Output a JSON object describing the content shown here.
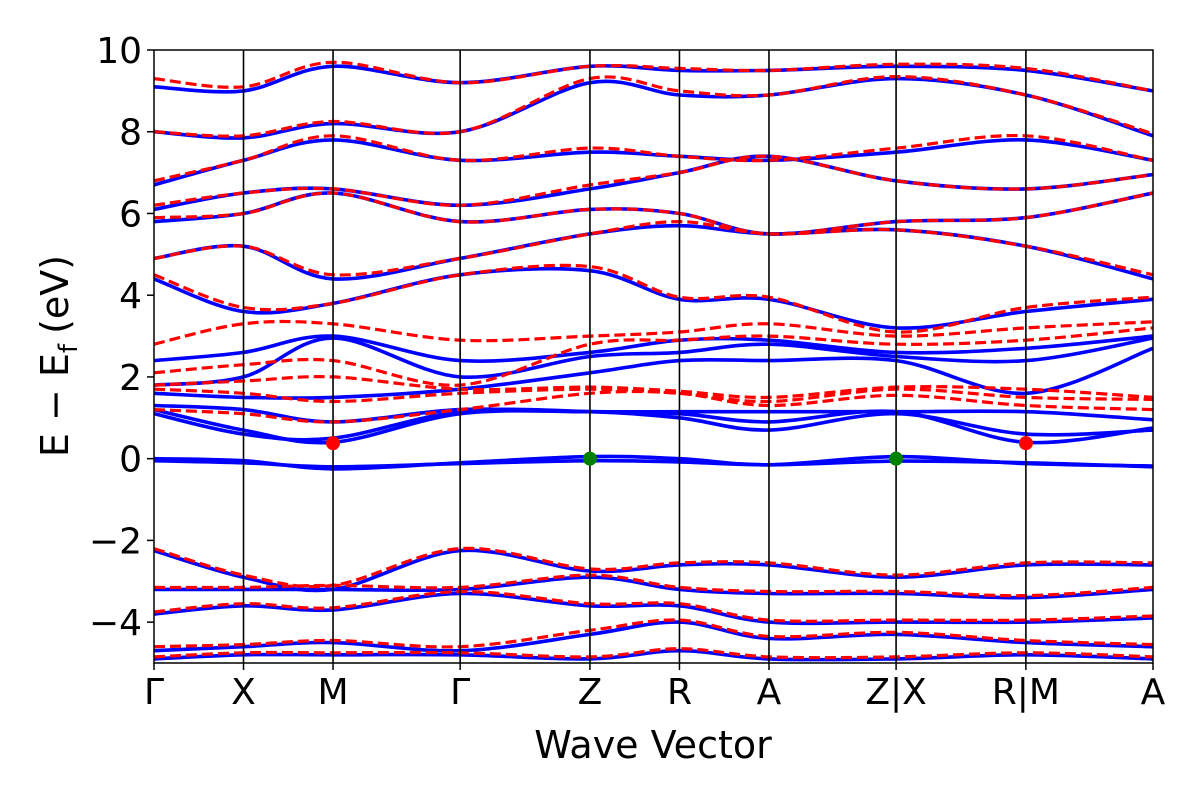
{
  "chart_data": {
    "type": "line",
    "title": "",
    "xlabel": "Wave Vector",
    "ylabel": "E − E",
    "ylabel_subscript": "f",
    "ylabel_unit": "(eV)",
    "ylim": [
      -5,
      10
    ],
    "y_ticks": [
      {
        "value": 10,
        "label": "10"
      },
      {
        "value": 8,
        "label": "8"
      },
      {
        "value": 6,
        "label": "6"
      },
      {
        "value": 4,
        "label": "4"
      },
      {
        "value": 2,
        "label": "2"
      },
      {
        "value": 0,
        "label": "0"
      },
      {
        "value": -2,
        "label": "−2"
      },
      {
        "value": -4,
        "label": "−4"
      }
    ],
    "k_path": [
      {
        "pos": 0.0,
        "label": "Γ"
      },
      {
        "pos": 1.0,
        "label": "X"
      },
      {
        "pos": 2.0,
        "label": "M"
      },
      {
        "pos": 3.42,
        "label": "Γ"
      },
      {
        "pos": 4.87,
        "label": "Z"
      },
      {
        "pos": 5.87,
        "label": "R"
      },
      {
        "pos": 6.87,
        "label": "A"
      },
      {
        "pos": 8.29,
        "label": "Z|X"
      },
      {
        "pos": 9.74,
        "label": "R|M"
      },
      {
        "pos": 11.16,
        "label": "A"
      }
    ],
    "xlim": [
      0,
      11.16
    ],
    "series": [
      {
        "style": "solid",
        "color": "#0000ff",
        "bands": [
          [
            -0.05,
            -0.1,
            -0.2,
            -0.12,
            -0.05,
            -0.08,
            -0.15,
            -0.06,
            -0.1,
            -0.2
          ],
          [
            0.0,
            -0.05,
            -0.25,
            -0.1,
            0.05,
            0.0,
            -0.15,
            0.05,
            -0.12,
            -0.18
          ],
          [
            1.2,
            0.7,
            0.4,
            1.1,
            1.15,
            1.1,
            0.9,
            1.15,
            0.4,
            0.75
          ],
          [
            1.1,
            0.6,
            0.5,
            1.15,
            1.15,
            1.0,
            0.7,
            1.1,
            0.6,
            0.7
          ],
          [
            1.3,
            1.2,
            0.9,
            1.2,
            1.15,
            1.15,
            1.15,
            1.15,
            1.15,
            0.95
          ],
          [
            1.6,
            1.5,
            1.5,
            1.7,
            2.1,
            2.4,
            2.4,
            2.4,
            1.6,
            2.7
          ],
          [
            1.8,
            2.0,
            2.95,
            2.0,
            2.5,
            2.6,
            2.8,
            2.5,
            2.4,
            2.95
          ],
          [
            2.4,
            2.6,
            3.0,
            2.4,
            2.6,
            2.9,
            2.9,
            2.6,
            2.7,
            3.0
          ],
          [
            4.4,
            3.6,
            3.8,
            4.5,
            4.6,
            3.9,
            3.9,
            3.2,
            3.6,
            3.9
          ],
          [
            4.9,
            5.2,
            4.4,
            4.9,
            5.5,
            5.7,
            5.5,
            5.6,
            5.2,
            4.4
          ],
          [
            5.8,
            6.0,
            6.5,
            5.8,
            6.1,
            6.0,
            5.5,
            5.8,
            5.9,
            6.5
          ],
          [
            6.1,
            6.5,
            6.6,
            6.2,
            6.6,
            7.0,
            7.4,
            6.8,
            6.6,
            6.95
          ],
          [
            6.7,
            7.3,
            7.8,
            7.3,
            7.5,
            7.4,
            7.3,
            7.5,
            7.8,
            7.3
          ],
          [
            8.0,
            7.85,
            8.2,
            8.0,
            9.2,
            8.9,
            8.9,
            9.3,
            8.9,
            7.9
          ],
          [
            9.1,
            9.0,
            9.6,
            9.2,
            9.6,
            9.5,
            9.5,
            9.6,
            9.5,
            9.0
          ],
          [
            -2.25,
            -2.9,
            -3.2,
            -2.25,
            -2.75,
            -2.6,
            -2.6,
            -2.9,
            -2.6,
            -2.6
          ],
          [
            -3.2,
            -3.2,
            -3.2,
            -3.2,
            -2.9,
            -3.2,
            -3.3,
            -3.3,
            -3.4,
            -3.2
          ],
          [
            -3.8,
            -3.6,
            -3.7,
            -3.3,
            -3.6,
            -3.6,
            -4.0,
            -4.0,
            -4.0,
            -3.9
          ],
          [
            -4.7,
            -4.6,
            -4.5,
            -4.7,
            -4.3,
            -4.0,
            -4.4,
            -4.3,
            -4.5,
            -4.6
          ],
          [
            -4.9,
            -4.8,
            -4.8,
            -4.8,
            -4.9,
            -4.7,
            -4.9,
            -4.9,
            -4.8,
            -4.9
          ]
        ]
      },
      {
        "style": "dashed",
        "color": "#ff0000",
        "bands": [
          [
            1.7,
            1.6,
            1.4,
            1.6,
            1.7,
            1.6,
            1.4,
            1.7,
            1.5,
            1.45
          ],
          [
            1.8,
            1.9,
            2.0,
            1.7,
            1.75,
            1.65,
            1.5,
            1.75,
            1.7,
            1.5
          ],
          [
            2.1,
            2.3,
            2.4,
            1.8,
            2.8,
            2.9,
            3.0,
            2.8,
            2.9,
            3.2
          ],
          [
            2.8,
            3.3,
            3.3,
            2.9,
            3.0,
            3.1,
            3.3,
            3.0,
            3.2,
            3.35
          ],
          [
            1.2,
            1.1,
            0.9,
            1.2,
            1.6,
            1.6,
            1.3,
            1.55,
            1.3,
            1.2
          ],
          [
            4.5,
            3.7,
            3.8,
            4.5,
            4.7,
            3.95,
            3.95,
            3.1,
            3.7,
            3.95
          ],
          [
            4.9,
            5.2,
            4.5,
            4.9,
            5.5,
            5.8,
            5.5,
            5.6,
            5.2,
            4.5
          ],
          [
            5.9,
            6.0,
            6.5,
            5.8,
            6.1,
            6.0,
            5.5,
            5.8,
            5.9,
            6.5
          ],
          [
            6.2,
            6.5,
            6.6,
            6.2,
            6.7,
            7.0,
            7.4,
            6.8,
            6.6,
            6.95
          ],
          [
            6.8,
            7.3,
            7.9,
            7.3,
            7.6,
            7.4,
            7.3,
            7.6,
            7.9,
            7.3
          ],
          [
            8.0,
            7.9,
            8.25,
            8.0,
            9.3,
            9.0,
            8.9,
            9.35,
            8.9,
            7.95
          ],
          [
            9.3,
            9.1,
            9.7,
            9.2,
            9.6,
            9.55,
            9.5,
            9.65,
            9.55,
            9.0
          ],
          [
            -2.2,
            -2.85,
            -3.1,
            -2.2,
            -2.7,
            -2.55,
            -2.55,
            -2.85,
            -2.55,
            -2.55
          ],
          [
            -3.15,
            -3.15,
            -3.1,
            -3.15,
            -2.85,
            -3.15,
            -3.25,
            -3.25,
            -3.35,
            -3.15
          ],
          [
            -3.75,
            -3.55,
            -3.65,
            -3.25,
            -3.55,
            -3.55,
            -3.95,
            -3.95,
            -3.95,
            -3.85
          ],
          [
            -4.6,
            -4.55,
            -4.45,
            -4.6,
            -4.2,
            -3.95,
            -4.35,
            -4.25,
            -4.45,
            -4.55
          ],
          [
            -4.85,
            -4.75,
            -4.75,
            -4.75,
            -4.85,
            -4.65,
            -4.85,
            -4.85,
            -4.75,
            -4.85
          ]
        ]
      }
    ],
    "markers": [
      {
        "x": 2.0,
        "y": 0.38,
        "color": "#ff0000"
      },
      {
        "x": 4.87,
        "y": 0.0,
        "color": "#008000"
      },
      {
        "x": 8.29,
        "y": 0.0,
        "color": "#008000"
      },
      {
        "x": 9.74,
        "y": 0.38,
        "color": "#ff0000"
      }
    ],
    "grid": false,
    "legend": "none"
  }
}
